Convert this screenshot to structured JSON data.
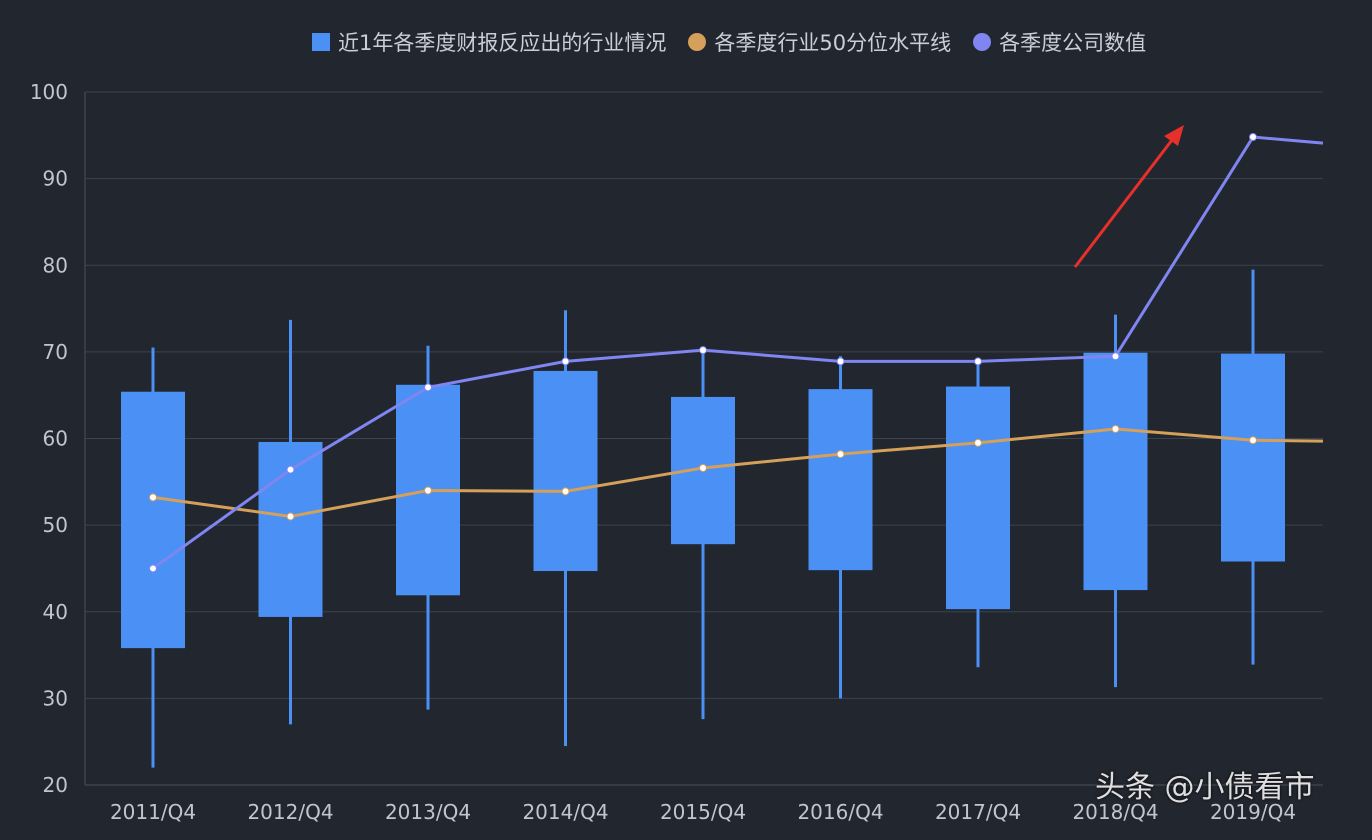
{
  "chart_data": {
    "type": "boxplot",
    "title": "",
    "xlabel": "",
    "ylabel": "",
    "ylim": [
      20,
      100
    ],
    "yticks": [
      20,
      30,
      40,
      50,
      60,
      70,
      80,
      90,
      100
    ],
    "grid": true,
    "legend_position": "top",
    "categories": [
      "2011/Q4",
      "2012/Q4",
      "2013/Q4",
      "2014/Q4",
      "2015/Q4",
      "2016/Q4",
      "2017/Q4",
      "2018/Q4",
      "2019/Q4"
    ],
    "series": [
      {
        "name": "近1年各季度财报反应出的行业情况",
        "type": "box",
        "color": "#4a90f5",
        "whisker_low": [
          22.0,
          27.0,
          28.7,
          24.5,
          27.6,
          30.0,
          33.6,
          31.3,
          33.9
        ],
        "box_low": [
          35.8,
          39.4,
          41.9,
          44.7,
          47.8,
          44.8,
          40.3,
          42.5,
          45.8
        ],
        "box_high": [
          65.4,
          59.6,
          66.2,
          67.8,
          64.8,
          65.7,
          66.0,
          69.9,
          69.8
        ],
        "whisker_high": [
          70.5,
          73.7,
          70.7,
          74.8,
          70.0,
          69.5,
          68.5,
          74.3,
          79.5
        ]
      },
      {
        "name": "各季度行业50分位水平线",
        "type": "line",
        "color": "#d4a05a",
        "values": [
          53.2,
          51.0,
          54.0,
          53.9,
          56.6,
          58.2,
          59.5,
          61.1,
          59.8
        ],
        "tail_value": 59.7
      },
      {
        "name": "各季度公司数值",
        "type": "line",
        "color": "#7f86f2",
        "values": [
          45.0,
          56.4,
          65.9,
          68.9,
          70.2,
          68.9,
          68.9,
          69.5,
          94.8
        ],
        "tail_value": 94.1
      }
    ],
    "annotations": [
      {
        "type": "arrow",
        "color": "#e8302a",
        "from": [
          "2018/Q4",
          80
        ],
        "to": [
          "2018/Q4",
          96
        ]
      }
    ]
  },
  "watermark": "头条 @小债看市"
}
